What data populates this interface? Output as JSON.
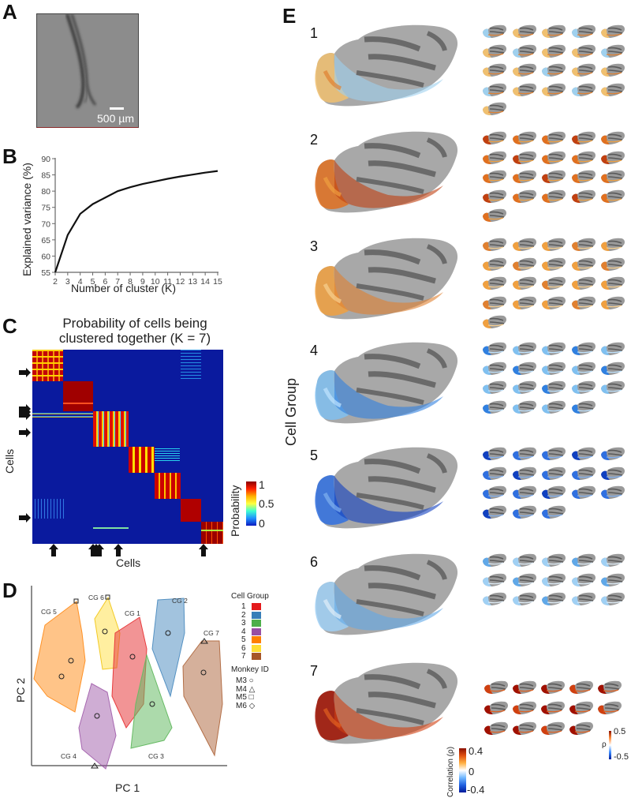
{
  "panels": {
    "A": {
      "letter": "A",
      "scale_label": "500 µm"
    },
    "B": {
      "letter": "B"
    },
    "C": {
      "letter": "C",
      "title_line1": "Probability of cells being",
      "title_line2": "clustered together (K = 7)",
      "ylabel": "Cells",
      "xlabel": "Cells",
      "colorbar_label": "Probability",
      "colorbar_ticks": [
        "1",
        "0.5",
        "0"
      ]
    },
    "D": {
      "letter": "D",
      "xlabel": "PC 1",
      "ylabel": "PC 2",
      "legend_title": "Cell Group",
      "legend_items": [
        {
          "num": "1",
          "color": "#e41a1c"
        },
        {
          "num": "2",
          "color": "#377eb8"
        },
        {
          "num": "3",
          "color": "#4daf4a"
        },
        {
          "num": "4",
          "color": "#984ea3"
        },
        {
          "num": "5",
          "color": "#ff7f00"
        },
        {
          "num": "6",
          "color": "#ffdd33"
        },
        {
          "num": "7",
          "color": "#a65628"
        }
      ],
      "monkey_title": "Monkey ID",
      "monkeys": [
        {
          "id": "M3",
          "marker": "○"
        },
        {
          "id": "M4",
          "marker": "△"
        },
        {
          "id": "M5",
          "marker": "□"
        },
        {
          "id": "M6",
          "marker": "◇"
        }
      ],
      "cluster_labels": [
        "CG 1",
        "CG 2",
        "CG 3",
        "CG 4",
        "CG 5",
        "CG 6",
        "CG 7"
      ]
    },
    "E": {
      "letter": "E",
      "ylabel": "Cell Group",
      "groups": [
        {
          "num": "1",
          "thumb_count": 21,
          "tone": "mixed"
        },
        {
          "num": "2",
          "thumb_count": 21,
          "tone": "warm"
        },
        {
          "num": "3",
          "thumb_count": 21,
          "tone": "warm-light"
        },
        {
          "num": "4",
          "thumb_count": 19,
          "tone": "cool"
        },
        {
          "num": "5",
          "thumb_count": 18,
          "tone": "cool-dark"
        },
        {
          "num": "6",
          "thumb_count": 15,
          "tone": "cool-light"
        },
        {
          "num": "7",
          "thumb_count": 14,
          "tone": "hot"
        }
      ],
      "colorbar_main": {
        "label": "Correlation (ρ)",
        "ticks": [
          "0.4",
          "0",
          "-0.4"
        ]
      },
      "colorbar_thumb": {
        "label": "ρ",
        "ticks": [
          "0.5",
          "-0.5"
        ]
      }
    }
  },
  "chart_data": [
    {
      "type": "line",
      "panel": "B",
      "title": "",
      "xlabel": "Number of cluster (K)",
      "ylabel": "Explained variance (%)",
      "x": [
        2,
        3,
        4,
        5,
        6,
        7,
        8,
        9,
        10,
        11,
        12,
        13,
        14,
        15
      ],
      "series": [
        {
          "name": "explained variance",
          "values": [
            55,
            66.5,
            73,
            76,
            78,
            80,
            81.2,
            82.2,
            83,
            83.8,
            84.5,
            85.1,
            85.7,
            86.2
          ]
        }
      ],
      "xlim": [
        2,
        15
      ],
      "ylim": [
        55,
        90
      ],
      "xticks": [
        "2",
        "3",
        "4",
        "5",
        "6",
        "7",
        "8",
        "9",
        "10",
        "11",
        "12",
        "13",
        "14",
        "15"
      ],
      "yticks": [
        "55",
        "60",
        "65",
        "70",
        "75",
        "80",
        "85",
        "90"
      ],
      "grid": false
    },
    {
      "type": "heatmap",
      "panel": "C",
      "title": "Probability of cells being clustered together (K = 7)",
      "xlabel": "Cells",
      "ylabel": "Cells",
      "colorbar": {
        "label": "Probability",
        "range": [
          0,
          1
        ],
        "ticks": [
          0,
          0.5,
          1
        ]
      },
      "blocks": 7
    },
    {
      "type": "scatter",
      "panel": "D",
      "xlabel": "PC 1",
      "ylabel": "PC 2",
      "series": [
        {
          "name": "CG 1",
          "color": "#e41a1c"
        },
        {
          "name": "CG 2",
          "color": "#377eb8"
        },
        {
          "name": "CG 3",
          "color": "#4daf4a"
        },
        {
          "name": "CG 4",
          "color": "#984ea3"
        },
        {
          "name": "CG 5",
          "color": "#ff7f00"
        },
        {
          "name": "CG 6",
          "color": "#ffdd33"
        },
        {
          "name": "CG 7",
          "color": "#a65628"
        }
      ]
    }
  ]
}
